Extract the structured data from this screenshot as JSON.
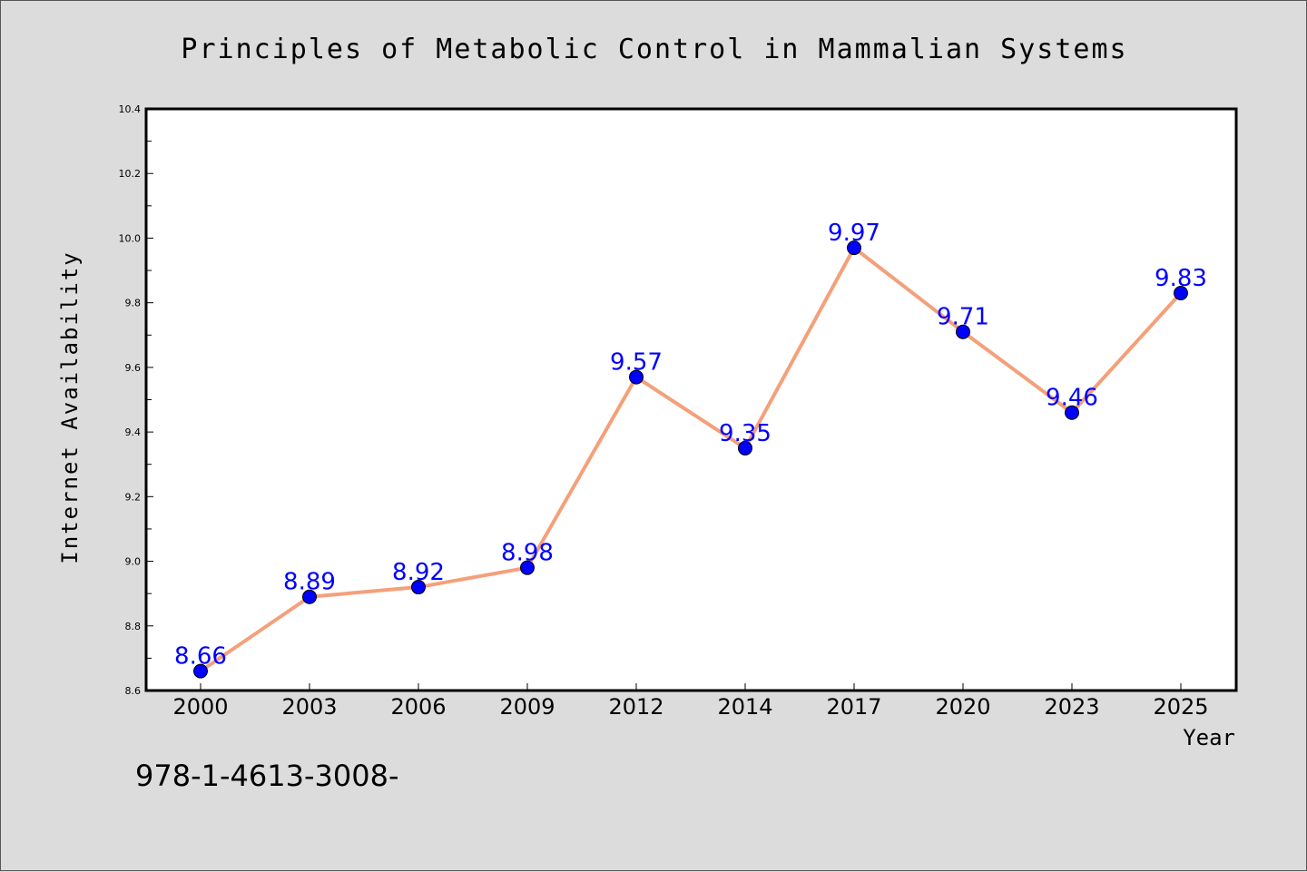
{
  "chart_data": {
    "type": "line",
    "title": "Principles of Metabolic Control in Mammalian Systems",
    "xlabel": "Year",
    "ylabel": "Internet Availability",
    "categories": [
      "2000",
      "2003",
      "2006",
      "2009",
      "2012",
      "2014",
      "2017",
      "2020",
      "2023",
      "2025"
    ],
    "series": [
      {
        "values": [
          8.66,
          8.89,
          8.92,
          8.98,
          9.57,
          9.35,
          9.97,
          9.71,
          9.46,
          9.83
        ],
        "data_labels": [
          "8.66",
          "8.89",
          "8.92",
          "8.98",
          "9.57",
          "9.35",
          "9.97",
          "9.71",
          "9.46",
          "9.83"
        ],
        "line_color": "#f4a07a",
        "marker_color": "#0000ff"
      }
    ],
    "ylim": [
      8.6,
      10.4
    ],
    "yticks": [
      "8.6",
      "8.8",
      "9.0",
      "9.2",
      "9.4",
      "9.6",
      "9.8",
      "10.0",
      "10.2",
      "10.4"
    ],
    "grid": false,
    "legend": "none"
  },
  "footer": {
    "isbn": "978-1-4613-3008-"
  }
}
